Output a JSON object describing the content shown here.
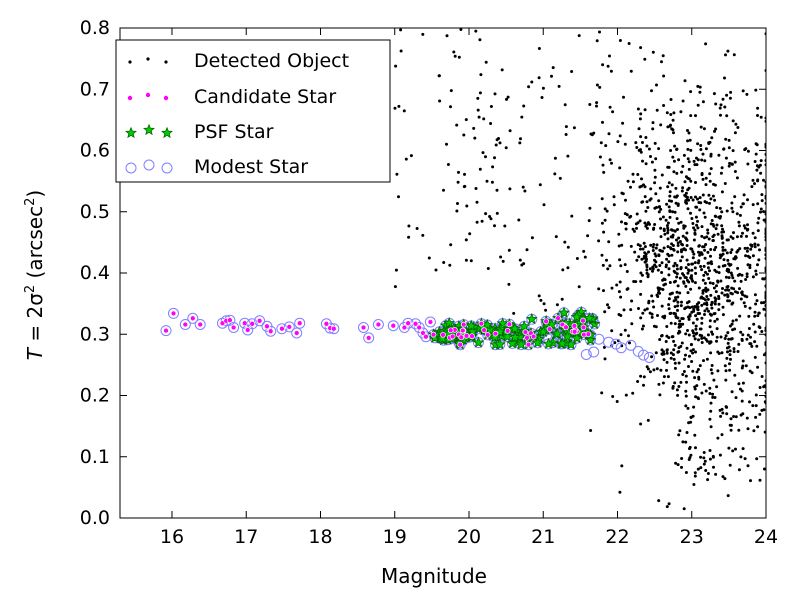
{
  "chart_data": {
    "type": "scatter",
    "xlabel": "Magnitude",
    "ylabel_parts": {
      "lhs": "T",
      "eq": " = 2σ",
      "sq": "2",
      "unit_open": " (arcsec",
      "unit_sq": "2",
      "unit_close": ")"
    },
    "xlim": [
      15.3,
      24.0
    ],
    "ylim": [
      0.0,
      0.8
    ],
    "xticks": [
      "16",
      "17",
      "18",
      "19",
      "20",
      "21",
      "22",
      "23",
      "24"
    ],
    "xtick_values": [
      16,
      17,
      18,
      19,
      20,
      21,
      22,
      23,
      24
    ],
    "yticks": [
      "0.0",
      "0.1",
      "0.2",
      "0.3",
      "0.4",
      "0.5",
      "0.6",
      "0.7",
      "0.8"
    ],
    "ytick_values": [
      0.0,
      0.1,
      0.2,
      0.3,
      0.4,
      0.5,
      0.6,
      0.7,
      0.8
    ],
    "grid": false,
    "legend_position": "top-left",
    "colors": {
      "detected": "#000000",
      "candidate": "#ff00ff",
      "psf_fill": "#00cc00",
      "psf_edge": "#006400",
      "modest": "#8080ff"
    },
    "series": [
      {
        "name": "Detected Object",
        "marker": "dot",
        "generated": true,
        "approx_count": 1300,
        "x_range": [
          19.0,
          24.0
        ],
        "y_range": [
          0.05,
          0.8
        ],
        "density_peak_x": 23.2,
        "density_peak_y": 0.4
      },
      {
        "name": "Candidate Star",
        "marker": "circle-small",
        "points": [
          [
            15.92,
            0.306
          ],
          [
            16.02,
            0.334
          ],
          [
            16.18,
            0.316
          ],
          [
            16.28,
            0.326
          ],
          [
            16.38,
            0.316
          ],
          [
            16.68,
            0.318
          ],
          [
            16.73,
            0.322
          ],
          [
            16.78,
            0.323
          ],
          [
            16.83,
            0.311
          ],
          [
            16.98,
            0.318
          ],
          [
            17.02,
            0.307
          ],
          [
            17.08,
            0.317
          ],
          [
            17.18,
            0.322
          ],
          [
            17.28,
            0.313
          ],
          [
            17.33,
            0.305
          ],
          [
            17.48,
            0.309
          ],
          [
            17.58,
            0.312
          ],
          [
            17.68,
            0.302
          ],
          [
            17.72,
            0.318
          ],
          [
            18.08,
            0.317
          ],
          [
            18.13,
            0.31
          ],
          [
            18.18,
            0.309
          ],
          [
            18.58,
            0.311
          ],
          [
            18.65,
            0.294
          ],
          [
            18.78,
            0.316
          ],
          [
            18.98,
            0.314
          ],
          [
            19.13,
            0.311
          ],
          [
            19.18,
            0.318
          ],
          [
            19.28,
            0.317
          ],
          [
            19.33,
            0.311
          ],
          [
            19.38,
            0.302
          ],
          [
            19.48,
            0.32
          ],
          [
            19.42,
            0.296
          ]
        ]
      },
      {
        "name": "PSF Star",
        "marker": "star",
        "generated": true,
        "approx_count": 140,
        "x_range": [
          19.5,
          21.7
        ],
        "y_range": [
          0.285,
          0.335
        ]
      },
      {
        "name": "Modest Star",
        "marker": "circle-open",
        "extra_points": [
          [
            21.58,
            0.267
          ],
          [
            21.68,
            0.271
          ],
          [
            21.88,
            0.287
          ],
          [
            21.98,
            0.284
          ],
          [
            22.18,
            0.282
          ],
          [
            22.28,
            0.272
          ],
          [
            22.43,
            0.262
          ],
          [
            21.75,
            0.292
          ],
          [
            22.05,
            0.278
          ],
          [
            22.35,
            0.266
          ]
        ]
      }
    ]
  }
}
